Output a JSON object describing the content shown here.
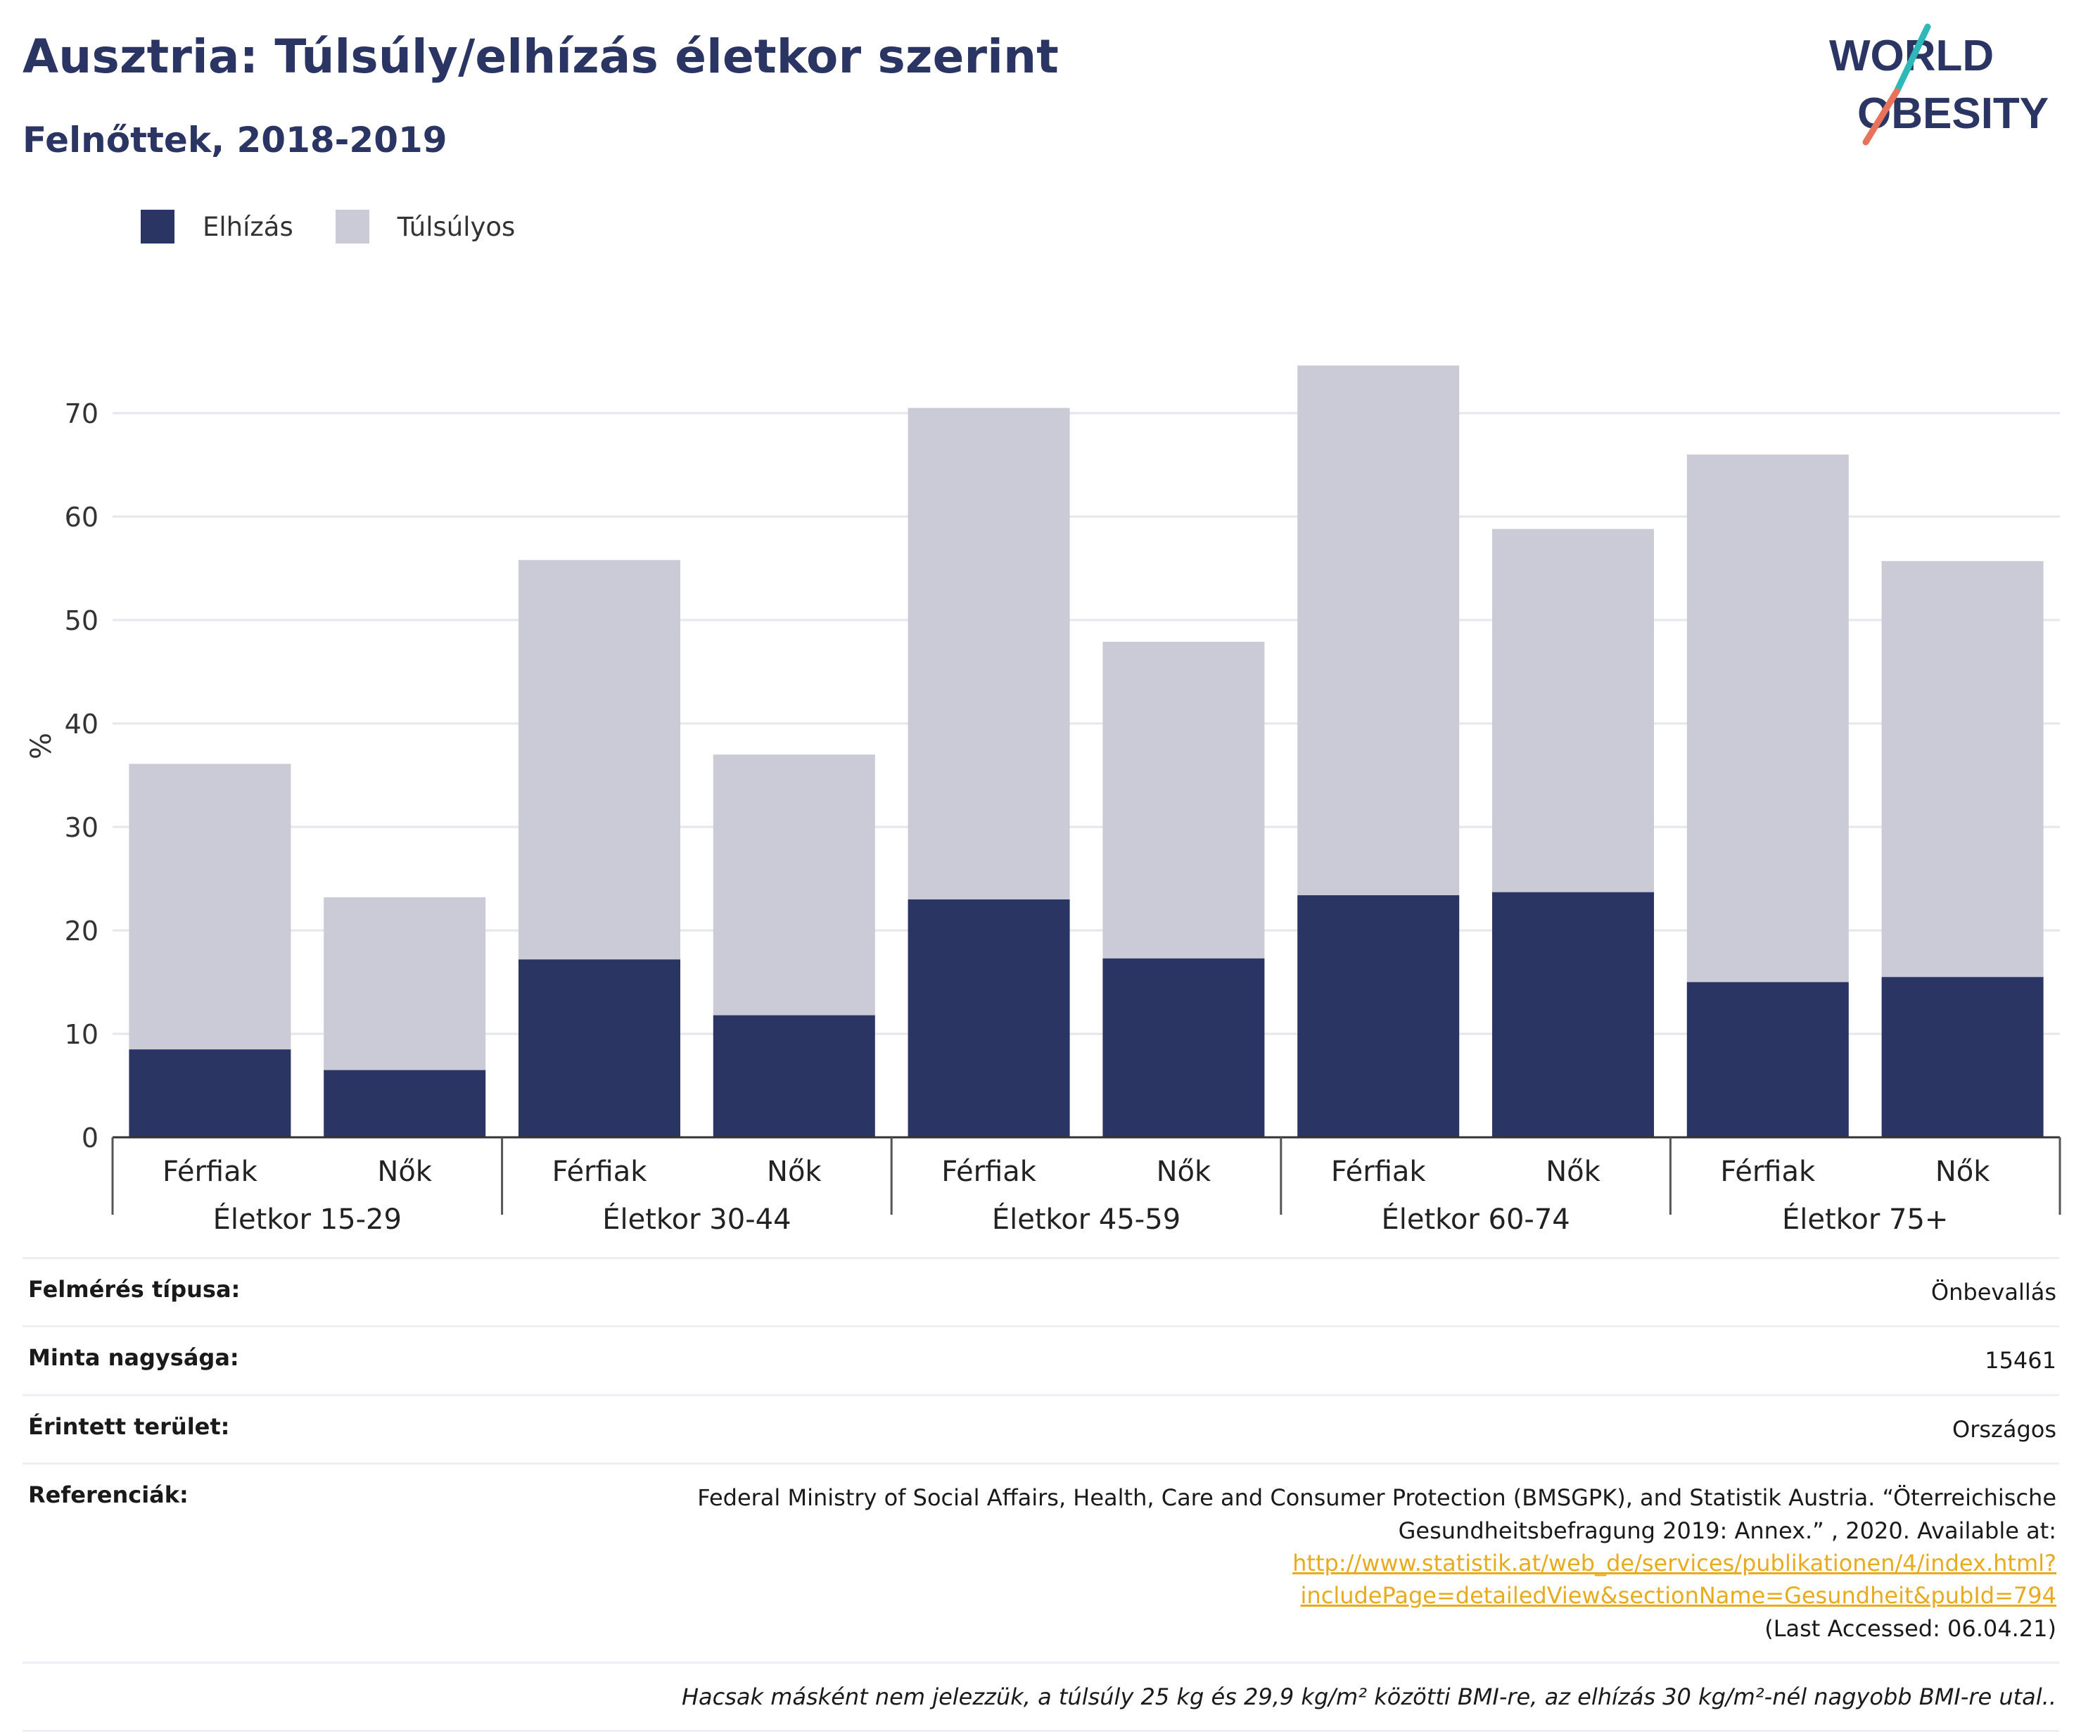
{
  "title": "Ausztria: Túlsúly/elhízás életkor szerint",
  "subtitle": "Felnőttek, 2018-2019",
  "logo": {
    "line1": "WORLD",
    "line2": "OBESITY"
  },
  "colors": {
    "obese": "#2b3563",
    "overweight": "#cacbd6",
    "title": "#2b3563",
    "link": "#e8ab1e",
    "logo_teal": "#2fb8b8",
    "logo_coral": "#e8735a"
  },
  "legend": [
    {
      "label": "Elhízás",
      "color": "#2b3563"
    },
    {
      "label": "Túlsúlyos",
      "color": "#cacbd6"
    }
  ],
  "chart_data": {
    "type": "bar",
    "stacked": true,
    "ylabel": "%",
    "ylim": [
      0,
      80
    ],
    "yticks": [
      0,
      10,
      20,
      30,
      40,
      50,
      60,
      70
    ],
    "grid": true,
    "legend_position": "top-left",
    "groups": [
      "Életkor 15-29",
      "Életkor 30-44",
      "Életkor 45-59",
      "Életkor 60-74",
      "Életkor 75+"
    ],
    "categories": [
      "Férfiak",
      "Nők",
      "Férfiak",
      "Nők",
      "Férfiak",
      "Nők",
      "Férfiak",
      "Nők",
      "Férfiak",
      "Nők"
    ],
    "series": [
      {
        "name": "Elhízás",
        "values": [
          8.5,
          6.5,
          17.2,
          11.8,
          23.0,
          17.3,
          23.4,
          23.7,
          15.0,
          15.5
        ]
      },
      {
        "name": "Túlsúlyos",
        "values": [
          27.6,
          16.7,
          38.6,
          25.2,
          47.5,
          30.6,
          51.2,
          35.1,
          51.0,
          40.2
        ]
      }
    ]
  },
  "info": {
    "survey_label": "Felmérés típusa:",
    "survey_value": "Önbevallás",
    "sample_label": "Minta nagysága:",
    "sample_value": "15461",
    "area_label": "Érintett terület:",
    "area_value": "Országos",
    "ref_label": "Referenciák:",
    "ref_text1": "Federal Ministry of Social Affairs, Health, Care and Consumer Protection (BMSGPK), and Statistik Austria. “Öterreichische Gesundheitsbefragung 2019: Annex.” , 2020. Available at:",
    "ref_link": "http://www.statistik.at/web_de/services/publikationen/4/index.html?includePage=detailedView&sectionName=Gesundheit&pubId=794",
    "ref_text2": "(Last Accessed: 06.04.21)",
    "note": "Hacsak másként nem jelezzük, a túlsúly 25 kg és 29,9 kg/m² közötti BMI-re, az elhízás 30 kg/m²-nél nagyobb BMI-re utal.."
  }
}
